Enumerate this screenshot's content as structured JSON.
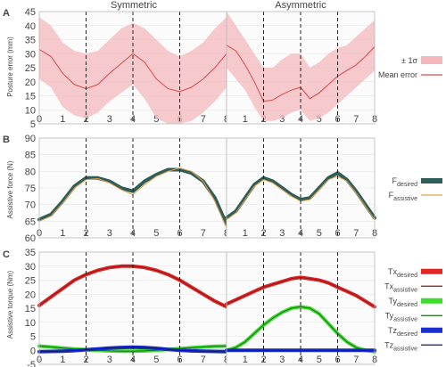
{
  "figure": {
    "columns": [
      "Symmetric",
      "Asymmetric"
    ],
    "panels": [
      {
        "letter": "A",
        "ylabel": "Posture error (mm)"
      },
      {
        "letter": "B",
        "ylabel": "Assistive force (N)"
      },
      {
        "letter": "C",
        "ylabel": "Assistive torque (Nm)"
      }
    ]
  },
  "chart_data": [
    {
      "type": "line",
      "panel": "A",
      "ylabel": "Posture error (mm)",
      "xlim": [
        0,
        8
      ],
      "ylim": [
        5,
        45
      ],
      "xticks": [
        0,
        1,
        2,
        3,
        4,
        5,
        6,
        7,
        8
      ],
      "yticks": [
        5,
        10,
        15,
        20,
        25,
        30,
        35,
        40,
        45
      ],
      "vlines": [
        2,
        4,
        6
      ],
      "legend": [
        {
          "label": "± 1σ",
          "color": "#f4b8bc",
          "kind": "band"
        },
        {
          "label": "Mean error",
          "color": "#d94a4a",
          "kind": "line"
        }
      ],
      "subplots": [
        {
          "title": "Symmetric",
          "x": [
            0,
            0.5,
            1,
            1.5,
            2,
            2.5,
            3,
            3.5,
            4,
            4.5,
            5,
            5.5,
            6,
            6.5,
            7,
            7.5,
            8
          ],
          "mean": [
            31.5,
            29,
            23,
            19,
            17.5,
            19,
            23,
            26.5,
            30,
            27,
            21,
            17.5,
            16.5,
            18,
            21,
            25,
            30
          ],
          "upper": [
            43,
            40,
            34,
            31,
            30,
            31,
            35,
            39,
            41,
            39,
            35,
            31,
            29,
            31,
            34,
            39,
            43
          ],
          "lower": [
            21,
            18,
            11,
            8,
            7,
            9,
            13,
            16,
            19,
            14,
            7,
            5,
            5,
            6,
            9,
            13,
            18
          ]
        },
        {
          "title": "Asymmetric",
          "x": [
            0,
            0.5,
            1,
            1.5,
            2,
            2.5,
            3,
            3.5,
            4,
            4.5,
            5,
            5.5,
            6,
            6.5,
            7,
            7.5,
            8
          ],
          "mean": [
            33,
            31,
            26,
            20,
            13,
            13.5,
            15.5,
            17,
            18,
            14,
            16,
            19,
            22,
            24,
            26,
            29,
            32.5
          ],
          "upper": [
            45,
            40,
            35,
            30,
            25,
            25,
            28,
            30,
            30,
            25,
            27,
            30,
            32,
            33,
            36,
            39,
            42
          ],
          "lower": [
            25,
            21,
            17,
            11,
            6,
            6,
            7,
            9,
            10,
            6,
            7,
            9,
            12,
            15,
            18,
            21,
            24
          ]
        }
      ]
    },
    {
      "type": "line",
      "panel": "B",
      "ylabel": "Assistive force (N)",
      "xlim": [
        0,
        8
      ],
      "ylim": [
        60,
        90
      ],
      "xticks": [
        0,
        1,
        2,
        3,
        4,
        5,
        6,
        7,
        8
      ],
      "yticks": [
        60,
        65,
        70,
        75,
        80,
        85,
        90
      ],
      "vlines": [
        2,
        4,
        6
      ],
      "legend": [
        {
          "label": "F",
          "sub": "desired",
          "color": "#2f5d58",
          "kind": "thick"
        },
        {
          "label": "F",
          "sub": "assistive",
          "color": "#e8a04a",
          "kind": "line"
        }
      ],
      "subplots": [
        {
          "title": "Symmetric",
          "x": [
            0,
            0.5,
            1,
            1.5,
            2,
            2.5,
            3,
            3.5,
            4,
            4.5,
            5,
            5.5,
            6,
            6.5,
            7,
            7.5,
            8
          ],
          "series": [
            {
              "name": "F desired",
              "values": [
                65.5,
                67,
                71,
                75.5,
                78,
                78,
                77,
                75,
                74,
                77,
                79,
                80.5,
                80.5,
                79.5,
                77,
                72,
                64
              ]
            },
            {
              "name": "F assistive",
              "values": [
                65,
                66.5,
                70.5,
                75,
                77.5,
                77.8,
                76.5,
                74.5,
                73,
                76,
                78.5,
                80,
                81,
                80,
                77,
                71,
                63
              ]
            }
          ]
        },
        {
          "title": "Asymmetric",
          "x": [
            0,
            0.5,
            1,
            1.5,
            2,
            2.5,
            3,
            3.5,
            4,
            4.5,
            5,
            5.5,
            6,
            6.5,
            7,
            7.5,
            8
          ],
          "series": [
            {
              "name": "F desired",
              "values": [
                66,
                68,
                72,
                76,
                78,
                77,
                75,
                73,
                71.5,
                72,
                75,
                78,
                79.5,
                77.5,
                74,
                70,
                66
              ]
            },
            {
              "name": "F assistive",
              "values": [
                65.5,
                67.5,
                71.5,
                75.5,
                77.5,
                76.5,
                74.5,
                72.5,
                71,
                71.5,
                74.5,
                77.5,
                78.5,
                77,
                73.5,
                69.5,
                65.5
              ]
            }
          ]
        }
      ]
    },
    {
      "type": "line",
      "panel": "C",
      "ylabel": "Assistive torque (Nm)",
      "xlim": [
        0,
        8
      ],
      "ylim": [
        -5,
        35
      ],
      "xticks": [
        0,
        1,
        2,
        3,
        4,
        5,
        6,
        7,
        8
      ],
      "yticks": [
        -5,
        0,
        5,
        10,
        15,
        20,
        25,
        30,
        35
      ],
      "vlines": [
        2,
        4,
        6
      ],
      "legend": [
        {
          "label": "Tx",
          "sub": "desired",
          "color": "#e02525",
          "kind": "thick"
        },
        {
          "label": "Tx",
          "sub": "assistive",
          "color": "#8b1a1a",
          "kind": "line"
        },
        {
          "label": "Ty",
          "sub": "desired",
          "color": "#3ddc2e",
          "kind": "thick"
        },
        {
          "label": "Ty",
          "sub": "assistive",
          "color": "#1f6b1a",
          "kind": "line"
        },
        {
          "label": "Tz",
          "sub": "desired",
          "color": "#1a2fd0",
          "kind": "thick"
        },
        {
          "label": "Tz",
          "sub": "assistive",
          "color": "#0d1870",
          "kind": "line"
        }
      ],
      "subplots": [
        {
          "title": "Symmetric",
          "x": [
            0,
            0.5,
            1,
            1.5,
            2,
            2.5,
            3,
            3.5,
            4,
            4.5,
            5,
            5.5,
            6,
            6.5,
            7,
            7.5,
            8
          ],
          "series": [
            {
              "name": "Tx desired",
              "values": [
                16,
                19,
                22,
                25,
                27,
                28.5,
                29.5,
                30,
                30,
                29.5,
                28.5,
                27,
                25,
                22.5,
                20,
                17.5,
                15.5
              ]
            },
            {
              "name": "Tx assistive",
              "values": [
                16,
                19,
                22,
                25,
                27,
                28.5,
                29.5,
                30,
                30,
                29.5,
                28.5,
                27,
                25,
                22.5,
                20,
                17.5,
                15.5
              ]
            },
            {
              "name": "Ty desired",
              "values": [
                1.5,
                1.2,
                0.8,
                0.5,
                0.2,
                0,
                -0.2,
                -0.3,
                -0.3,
                -0.2,
                0,
                0.3,
                0.6,
                0.9,
                1.2,
                1.4,
                1.5
              ]
            },
            {
              "name": "Ty assistive",
              "values": [
                1.5,
                1.2,
                0.8,
                0.5,
                0.2,
                0,
                -0.2,
                -0.3,
                -0.3,
                -0.2,
                0,
                0.3,
                0.6,
                0.9,
                1.2,
                1.4,
                1.5
              ]
            },
            {
              "name": "Tz desired",
              "values": [
                -0.5,
                -0.4,
                -0.3,
                -0.1,
                0.2,
                0.5,
                0.8,
                1,
                1.1,
                1,
                0.7,
                0.3,
                0,
                -0.2,
                -0.3,
                -0.4,
                -0.5
              ]
            },
            {
              "name": "Tz assistive",
              "values": [
                -0.5,
                -0.4,
                -0.3,
                -0.1,
                0.2,
                0.5,
                0.8,
                1,
                1.1,
                1,
                0.7,
                0.3,
                0,
                -0.2,
                -0.3,
                -0.4,
                -0.5
              ]
            }
          ]
        },
        {
          "title": "Asymmetric",
          "x": [
            0,
            0.5,
            1,
            1.5,
            2,
            2.5,
            3,
            3.5,
            4,
            4.5,
            5,
            5.5,
            6,
            6.5,
            7,
            7.5,
            8
          ],
          "series": [
            {
              "name": "Tx desired",
              "values": [
                16.5,
                18,
                19.5,
                21,
                22.5,
                23.5,
                24.5,
                25.5,
                26,
                25.5,
                25,
                24,
                22.5,
                21,
                19.5,
                17.5,
                15.5
              ]
            },
            {
              "name": "Tx assistive",
              "values": [
                16.5,
                18,
                19.5,
                21,
                22.5,
                23.5,
                24.5,
                25.5,
                26,
                25.5,
                25,
                24,
                22.5,
                21,
                19.5,
                17.5,
                15.5
              ]
            },
            {
              "name": "Ty desired",
              "values": [
                0,
                1,
                3,
                6,
                9,
                11.5,
                13.5,
                15,
                15.5,
                15,
                13,
                9.5,
                6,
                3,
                1,
                0,
                -0.5
              ]
            },
            {
              "name": "Ty assistive",
              "values": [
                0,
                1,
                3,
                6,
                9,
                11.5,
                13.5,
                15,
                15.5,
                15,
                13,
                9.5,
                6,
                3,
                1,
                0,
                -0.5
              ]
            },
            {
              "name": "Tz desired",
              "values": [
                0,
                0,
                0,
                0,
                0,
                0,
                0,
                0,
                0,
                0,
                0,
                0,
                0,
                0,
                0,
                0,
                0
              ]
            },
            {
              "name": "Tz assistive",
              "values": [
                0,
                0,
                0,
                0,
                0,
                0,
                0,
                0,
                0,
                0,
                0,
                0,
                0,
                0,
                0,
                0,
                0
              ]
            }
          ]
        }
      ]
    }
  ]
}
